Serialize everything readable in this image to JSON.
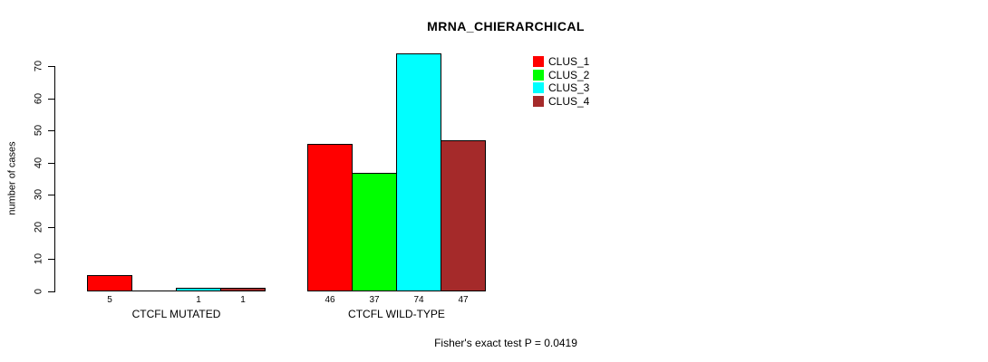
{
  "chart_data": {
    "type": "bar",
    "title": "MRNA_CHIERARCHICAL",
    "ylabel": "number of cases",
    "xlabel": "",
    "ylim": [
      0,
      70
    ],
    "yticks": [
      0,
      10,
      20,
      30,
      40,
      50,
      60,
      70
    ],
    "grid": false,
    "legend_position": "top-right-inside",
    "categories": [
      "CTCFL MUTATED",
      "CTCFL WILD-TYPE"
    ],
    "series": [
      {
        "name": "CLUS_1",
        "color": "#FF0000",
        "values": [
          5,
          46
        ]
      },
      {
        "name": "CLUS_2",
        "color": "#00FF00",
        "values": [
          0,
          37
        ]
      },
      {
        "name": "CLUS_3",
        "color": "#00FFFF",
        "values": [
          1,
          74
        ]
      },
      {
        "name": "CLUS_4",
        "color": "#A52A2A",
        "values": [
          1,
          47
        ]
      }
    ],
    "bar_value_labels": [
      [
        "5",
        "",
        "1",
        "1"
      ],
      [
        "46",
        "37",
        "74",
        "47"
      ]
    ],
    "bar_outline_color": "#000000",
    "axis_color": "#000000",
    "annotation": "Fisher's exact test P = 0.0419"
  }
}
